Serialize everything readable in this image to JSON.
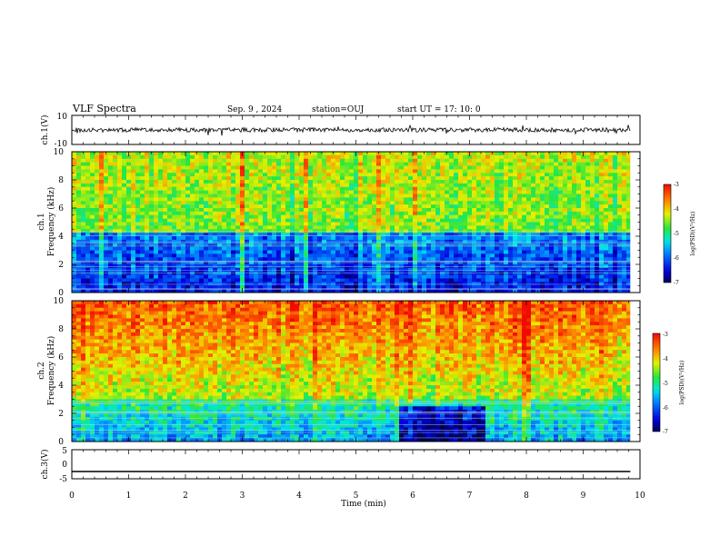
{
  "header": {
    "title": "VLF Spectra",
    "date": "Sep. 9 , 2024",
    "station": "station=OUJ",
    "start": "start UT = 17: 10: 0"
  },
  "chart_data": [
    {
      "id": "ch1-waveform",
      "type": "line",
      "ylabel": "ch.1(V)",
      "ylim": [
        -10,
        10
      ],
      "yticks": [
        "10",
        "-10"
      ],
      "x_range_min": [
        0,
        9.83
      ],
      "series": [
        {
          "baseline": 0,
          "noise_amplitude": 1.5,
          "color": "#000000"
        }
      ]
    },
    {
      "id": "ch1-spectrogram",
      "type": "heatmap",
      "ylabel": "ch.1",
      "ylabel2": "Frequency (kHz)",
      "ylim": [
        0,
        10
      ],
      "yticks": [
        "0",
        "2",
        "4",
        "6",
        "8",
        "10"
      ],
      "colorbar": {
        "label": "log(PSD)(V²/Hz)",
        "range": [
          -7,
          -3
        ],
        "ticks": [
          "-3",
          "-4",
          "-5",
          "-6",
          "-7"
        ]
      },
      "dominant_low_band_khz": [
        0,
        4
      ],
      "note_levels": {
        "low_band": -6.4,
        "high_band": -4.6
      }
    },
    {
      "id": "ch2-spectrogram",
      "type": "heatmap",
      "ylabel": "ch.2",
      "ylabel2": "Frequency (kHz)",
      "ylim": [
        0,
        10
      ],
      "yticks": [
        "0",
        "2",
        "4",
        "6",
        "8",
        "10"
      ],
      "colorbar": {
        "label": "log(PSD)(V²/Hz)",
        "range": [
          -7,
          -3
        ],
        "ticks": [
          "-3",
          "-4",
          "-5",
          "-6",
          "-7"
        ]
      },
      "note_levels": {
        "low_band": -5.7,
        "high_band": -3.4
      },
      "dark_patch_min": [
        5.8,
        7.3
      ],
      "dark_patch_khz": [
        0,
        2.5
      ]
    },
    {
      "id": "ch3-waveform",
      "type": "line",
      "ylabel": "ch.3(V)",
      "ylim": [
        -5,
        5
      ],
      "yticks": [
        "5",
        "0",
        "-5"
      ],
      "x_range_min": [
        0,
        9.83
      ],
      "series": [
        {
          "baseline": -2.5,
          "noise_amplitude": 0,
          "color": "#000000"
        }
      ]
    }
  ],
  "xaxis": {
    "label": "Time (min)",
    "range": [
      0,
      10
    ],
    "ticks": [
      "0",
      "1",
      "2",
      "3",
      "4",
      "5",
      "6",
      "7",
      "8",
      "9",
      "10"
    ]
  }
}
